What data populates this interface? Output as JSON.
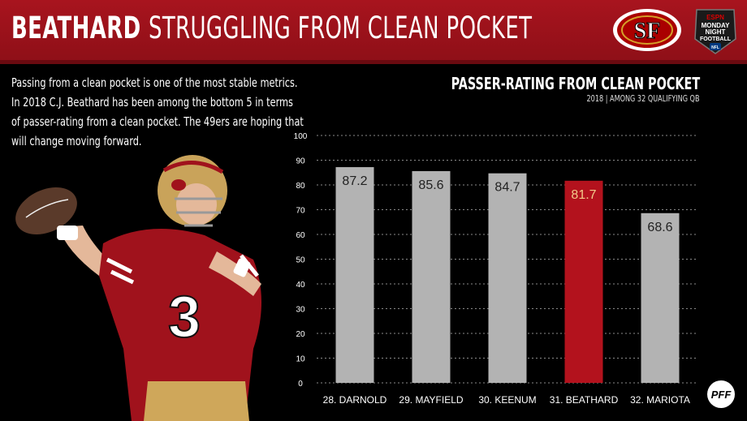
{
  "header": {
    "title_bold": "BEATHARD",
    "title_rest": "STRUGGLING FROM CLEAN POCKET"
  },
  "intro_text": "Passing from a clean pocket is one of the most stable metrics. In 2018 C.J. Beathard has been among the bottom 5 in terms of passer-rating from a clean pocket. The 49ers are hoping that will change moving forward.",
  "logos": {
    "team": "SF",
    "broadcast_small": "ESPN",
    "broadcast_line1": "MONDAY",
    "broadcast_line2": "NIGHT",
    "broadcast_line3": "FOOTBALL",
    "broadcast_badge": "NFL",
    "footer": "PFF"
  },
  "player": {
    "jersey_number": "3"
  },
  "chart_data": {
    "type": "bar",
    "title": "PASSER-RATING FROM CLEAN POCKET",
    "subtitle": "2018 | AMONG 32 QUALIFYING QB",
    "categories": [
      "28. DARNOLD",
      "29. MAYFIELD",
      "30. KEENUM",
      "31. BEATHARD",
      "32. MARIOTA"
    ],
    "values": [
      87.2,
      85.6,
      84.7,
      81.7,
      68.6
    ],
    "value_labels": [
      "87.2",
      "85.6",
      "84.7",
      "81.7",
      "68.6"
    ],
    "highlight": "31. BEATHARD",
    "ylim": [
      0,
      100
    ],
    "yticks": [
      0,
      10,
      20,
      30,
      40,
      50,
      60,
      70,
      80,
      90,
      100
    ],
    "grid": true,
    "colors": {
      "bar": "#b3b3b3",
      "highlight": "#b3121d",
      "grid": "#8a8a8a",
      "header": "#a8141e"
    }
  }
}
